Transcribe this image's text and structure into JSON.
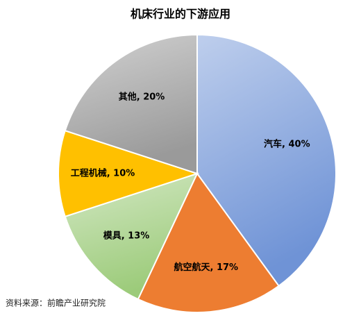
{
  "chart_data": {
    "type": "pie",
    "title": "机床行业的下游应用",
    "values": [
      40,
      17,
      13,
      10,
      20
    ],
    "value_labels": [
      "汽车, 40%",
      "航空航天, 17%",
      "模具, 13%",
      "工程机械, 10%",
      "其他, 20%"
    ],
    "colors": [
      "#6f93d6",
      "#ed7d31",
      "#9ccb7a",
      "#ffc000",
      "#9a9a9a"
    ],
    "source": "资料来源：前瞻产业研究院"
  }
}
